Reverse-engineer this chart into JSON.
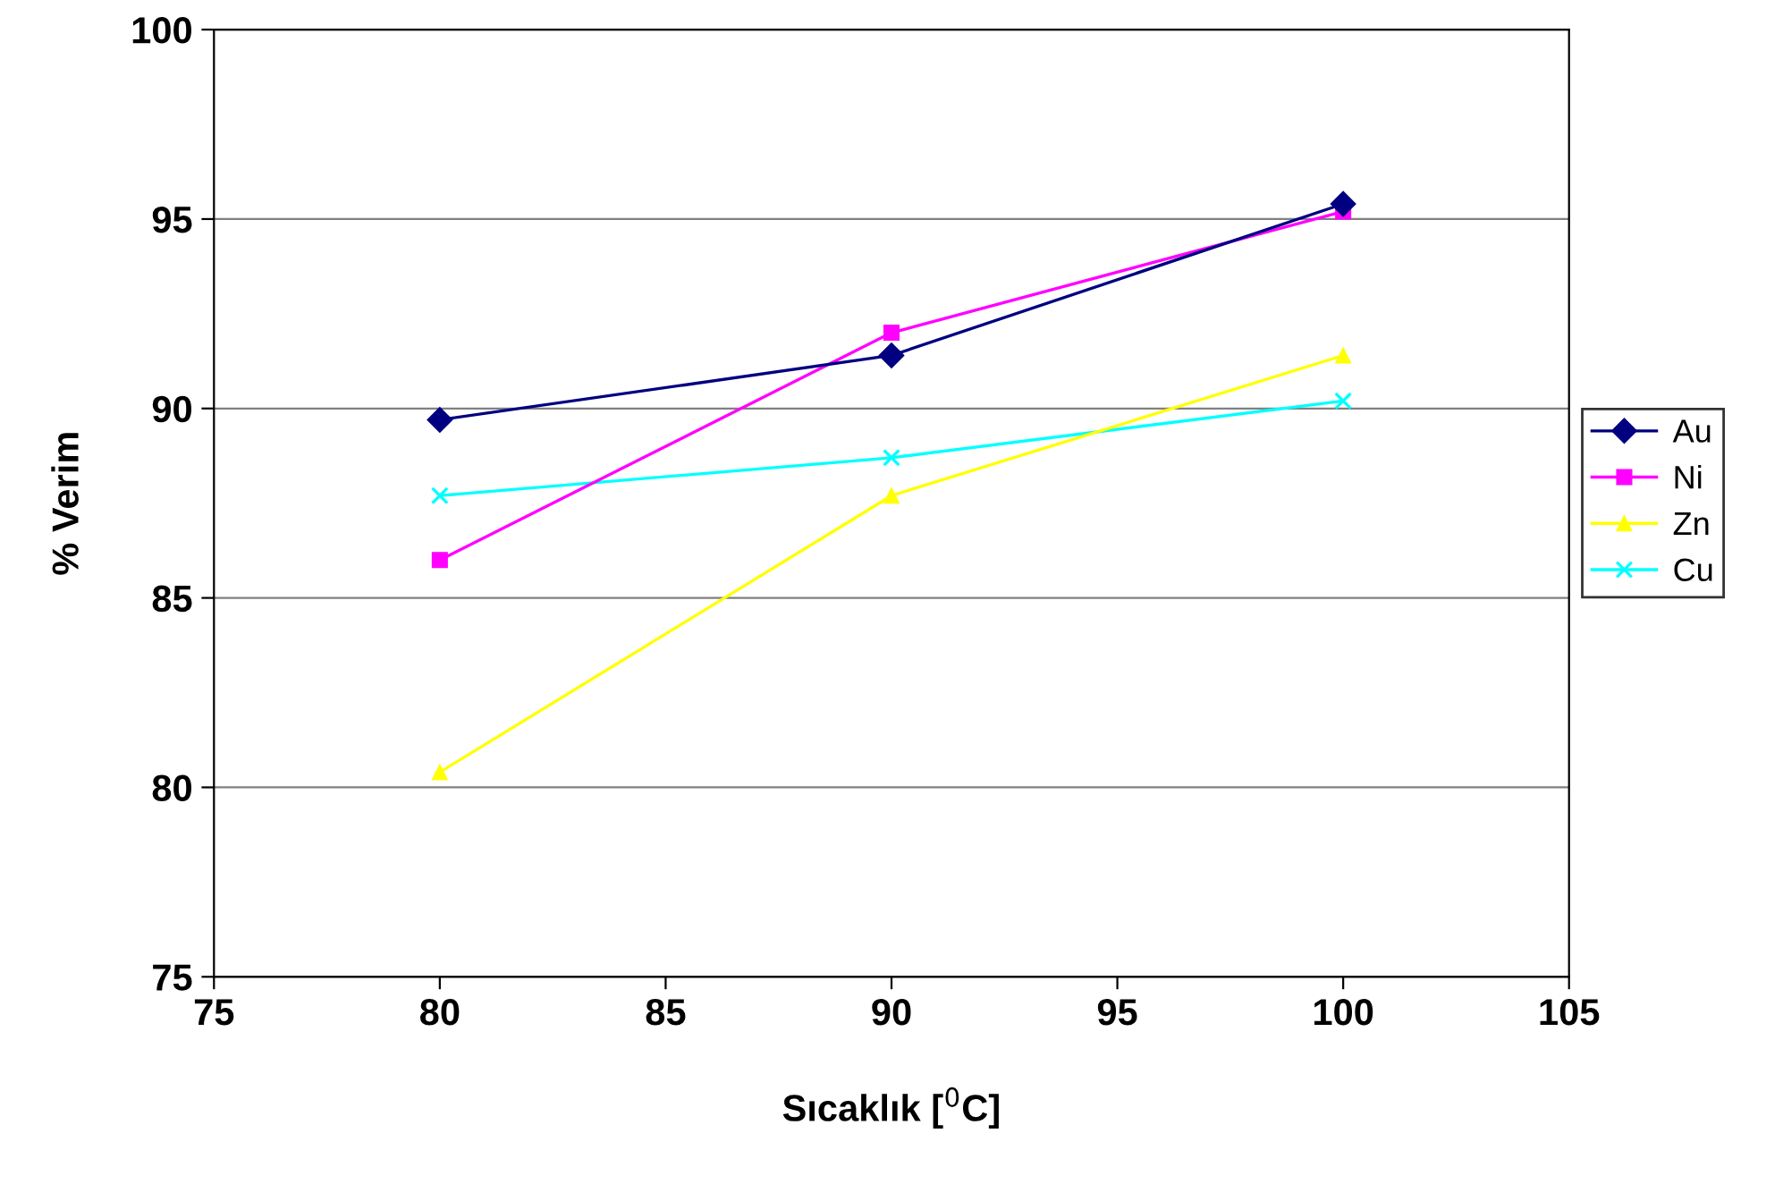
{
  "chart_data": {
    "type": "line",
    "xlabel": "Sıcaklık [$^{0}$C]",
    "ylabel": "% Verim",
    "x": [
      80,
      90,
      100
    ],
    "series": [
      {
        "name": "Au",
        "color": "#000080",
        "marker": "diamond",
        "values": [
          89.7,
          91.4,
          95.4
        ]
      },
      {
        "name": "Ni",
        "color": "#ff00ff",
        "marker": "square",
        "values": [
          86.0,
          92.0,
          95.2
        ]
      },
      {
        "name": "Zn",
        "color": "#ffff00",
        "marker": "triangle",
        "values": [
          80.4,
          87.7,
          91.4
        ]
      },
      {
        "name": "Cu",
        "color": "#00ffff",
        "marker": "cross",
        "values": [
          87.7,
          88.7,
          90.2
        ]
      }
    ],
    "xlim": [
      75,
      105
    ],
    "xticks": [
      75,
      80,
      85,
      90,
      95,
      100,
      105
    ],
    "ylim": [
      75,
      100
    ],
    "yticks": [
      75,
      80,
      85,
      90,
      95,
      100
    ],
    "grid": "y",
    "legend": "right",
    "line_style": "solid"
  }
}
